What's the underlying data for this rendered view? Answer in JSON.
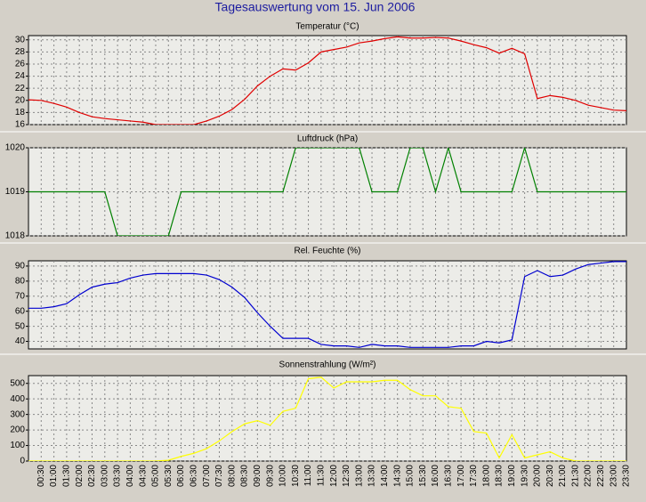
{
  "title": "Tagesauswertung vom 15. Jun 2006",
  "chart_data": [
    {
      "type": "line",
      "title": "Temperatur (°C)",
      "color": "#e00000",
      "grid": true,
      "ylim": [
        16,
        30.7
      ],
      "yticks": [
        16,
        18,
        20,
        22,
        24,
        26,
        28,
        30
      ],
      "values": [
        20.1,
        20.0,
        19.5,
        18.9,
        18.0,
        17.3,
        17.0,
        16.8,
        16.6,
        16.4,
        16.0,
        16.0,
        16.0,
        16.0,
        16.6,
        17.4,
        18.5,
        20.2,
        22.4,
        24.0,
        25.2,
        25.0,
        26.2,
        28.0,
        28.4,
        28.8,
        29.5,
        29.8,
        30.2,
        30.5,
        30.3,
        30.3,
        30.4,
        30.3,
        29.8,
        29.2,
        28.7,
        27.8,
        28.6,
        27.7,
        20.3,
        20.8,
        20.5,
        20.0,
        19.2,
        18.8,
        18.4,
        18.3
      ]
    },
    {
      "type": "line",
      "title": "Luftdruck (hPa)",
      "color": "#008000",
      "grid": true,
      "ylim": [
        1018,
        1020
      ],
      "yticks": [
        1018,
        1019,
        1020
      ],
      "values": [
        1019,
        1019,
        1019,
        1019,
        1019,
        1019,
        1019,
        1018,
        1018,
        1018,
        1018,
        1018,
        1019,
        1019,
        1019,
        1019,
        1019,
        1019,
        1019,
        1019,
        1019,
        1020,
        1020,
        1020,
        1020,
        1020,
        1020,
        1019,
        1019,
        1019,
        1020,
        1020,
        1019,
        1020,
        1019,
        1019,
        1019,
        1019,
        1019,
        1020,
        1019,
        1019,
        1019,
        1019,
        1019,
        1019,
        1019,
        1019
      ]
    },
    {
      "type": "line",
      "title": "Rel. Feuchte (%)",
      "color": "#0000d0",
      "grid": true,
      "ylim": [
        35,
        93.5
      ],
      "yticks": [
        40,
        50,
        60,
        70,
        80,
        90
      ],
      "values": [
        62,
        62,
        63,
        65,
        71,
        76,
        78,
        79,
        82,
        84,
        85,
        85,
        85,
        85,
        84,
        81,
        76,
        69,
        59,
        50,
        42,
        42,
        42,
        38,
        37,
        37,
        36,
        38,
        37,
        37,
        36,
        36,
        36,
        36,
        37,
        37,
        40,
        39,
        41,
        83,
        87,
        83,
        84,
        88,
        91,
        92,
        93,
        93
      ]
    },
    {
      "type": "line",
      "title": "Sonnenstrahlung (W/m²)",
      "color": "#ffff00",
      "grid": true,
      "ylim": [
        0,
        550
      ],
      "yticks": [
        0,
        100,
        200,
        300,
        400,
        500
      ],
      "categories": [
        null,
        "00:30",
        "01:00",
        "01:30",
        "02:00",
        "02:30",
        "03:00",
        "03:30",
        "04:00",
        "04:30",
        "05:00",
        "05:30",
        "06:00",
        "06:30",
        "07:00",
        "07:30",
        "08:00",
        "08:30",
        "09:00",
        "09:30",
        "10:00",
        "10:30",
        "11:00",
        "11:30",
        "12:00",
        "12:30",
        "13:00",
        "13:30",
        "14:00",
        "14:30",
        "15:00",
        "15:30",
        "16:00",
        "16:30",
        "17:00",
        "17:30",
        "18:00",
        "18:30",
        "19:00",
        "19:30",
        "20:00",
        "20:30",
        "21:00",
        "21:30",
        "22:00",
        "22:30",
        "23:00",
        "23:30"
      ],
      "values": [
        0,
        0,
        0,
        0,
        0,
        0,
        0,
        0,
        0,
        0,
        0,
        5,
        30,
        50,
        80,
        130,
        190,
        240,
        260,
        230,
        320,
        340,
        530,
        540,
        470,
        510,
        510,
        510,
        520,
        520,
        460,
        420,
        420,
        350,
        340,
        190,
        180,
        20,
        170,
        20,
        40,
        60,
        20,
        0,
        0,
        0,
        0,
        0
      ]
    }
  ]
}
